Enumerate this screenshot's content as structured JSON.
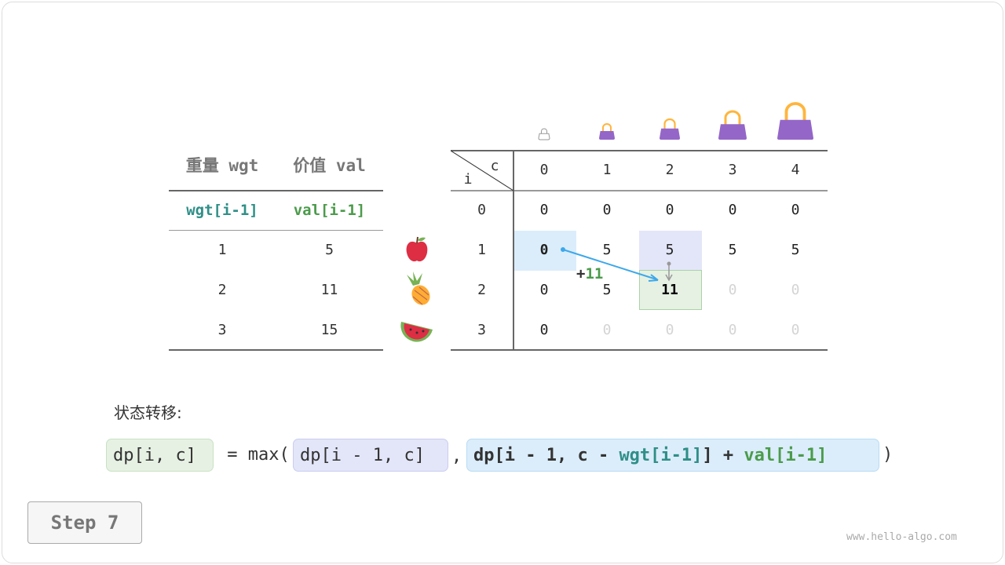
{
  "items_table": {
    "headers": [
      "重量 wgt",
      "价值 val"
    ],
    "subheaders": [
      "wgt[i-1]",
      "val[i-1]"
    ],
    "rows": [
      [
        "1",
        "5"
      ],
      [
        "2",
        "11"
      ],
      [
        "3",
        "15"
      ]
    ],
    "fruit_icons": [
      "apple-icon",
      "pineapple-icon",
      "watermelon-icon"
    ]
  },
  "dp_table": {
    "corner_col": "c",
    "corner_row": "i",
    "col_headers": [
      "0",
      "1",
      "2",
      "3",
      "4"
    ],
    "row_headers": [
      "0",
      "1",
      "2",
      "3"
    ],
    "cells": [
      [
        "0",
        "0",
        "0",
        "0",
        "0"
      ],
      [
        "0",
        "5",
        "5",
        "5",
        "5"
      ],
      [
        "0",
        "5",
        "11",
        "0",
        "0"
      ],
      [
        "0",
        "0",
        "0",
        "0",
        "0"
      ]
    ],
    "filled": [
      [
        true,
        true,
        true,
        true,
        true
      ],
      [
        true,
        true,
        true,
        true,
        true
      ],
      [
        true,
        true,
        true,
        false,
        false
      ],
      [
        true,
        false,
        false,
        false,
        false
      ]
    ],
    "bag_icons": [
      "empty-bag-icon",
      "bag-icon",
      "bag-icon",
      "bag-icon",
      "bag-icon"
    ],
    "annotation": {
      "plus": "+",
      "value": "11"
    }
  },
  "formula": {
    "label": "状态转移:",
    "lhs": "dp[i, c]",
    "eq": " = max(",
    "opt1": "dp[i - 1, c]",
    "comma": ",",
    "opt2_a": "dp[i - 1, c - ",
    "opt2_wgt": "wgt[i-1]",
    "opt2_b": "] + ",
    "opt2_val": "val[i-1]",
    "close": ")"
  },
  "step_label": "Step 7",
  "watermark": "www.hello-algo.com",
  "colors": {
    "wgt": "#2f8f87",
    "val": "#4b9b4b",
    "blue_hl": "#dbedfb",
    "purple_hl": "#e3e6f8",
    "green_hl": "#e6f1e3",
    "arrow": "#3da8ea",
    "bag": "#9466c8"
  }
}
